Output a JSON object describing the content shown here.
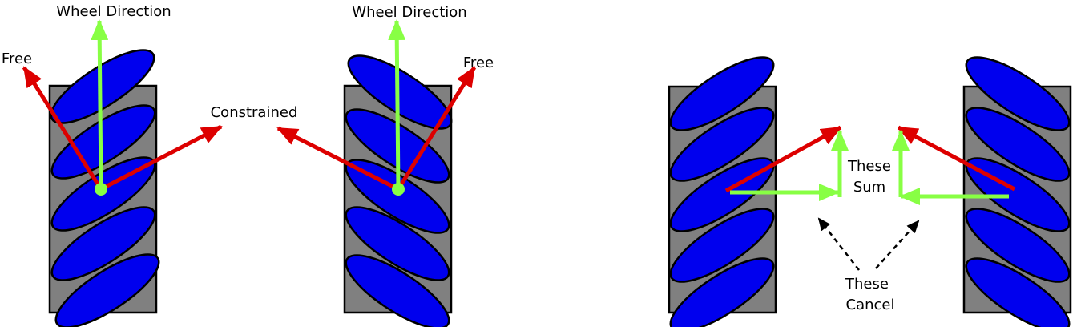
{
  "labels": {
    "wheel_direction_left": "Wheel Direction",
    "wheel_direction_right": "Wheel Direction",
    "free_left": "Free",
    "free_right": "Free",
    "constrained": "Constrained",
    "these_sum_line1": "These",
    "these_sum_line2": "Sum",
    "these_cancel_line1": "These",
    "these_cancel_line2": "Cancel"
  },
  "colors": {
    "wheel_body": "#808080",
    "roller": "#0000ee",
    "wheel_direction_arrow": "#88ff44",
    "force_arrow": "#dd0000",
    "annotation_arrow": "#000000",
    "background": "#ffffff"
  },
  "roller_orientation": {
    "left_wheels": "tilted up-right",
    "right_wheels": "tilted down-right"
  }
}
